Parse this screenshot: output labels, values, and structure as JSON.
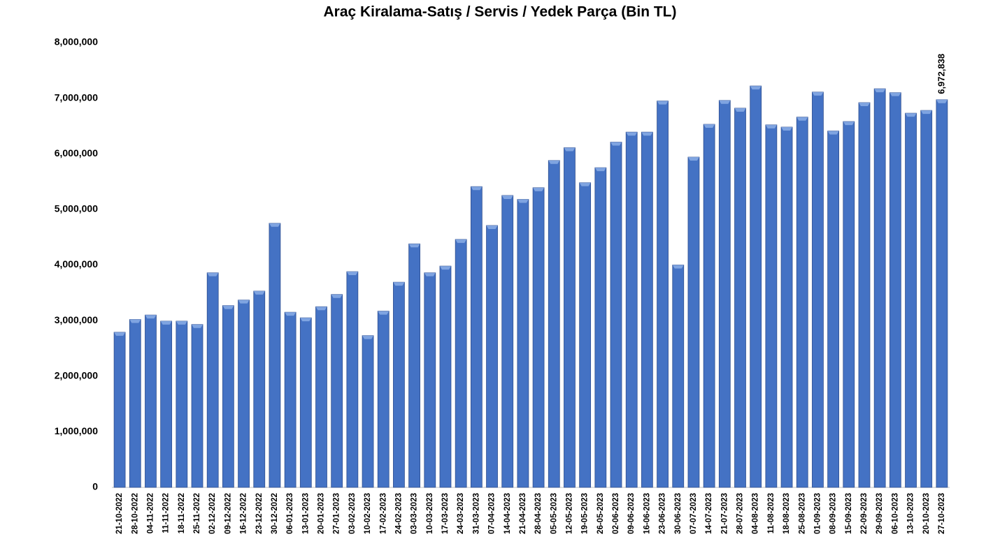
{
  "chart_data": {
    "type": "bar",
    "title": "Araç Kiralama-Satış / Servis / Yedek Parça (Bin TL)",
    "categories": [
      "21-10-2022",
      "28-10-2022",
      "04-11-2022",
      "11-11-2022",
      "18-11-2022",
      "25-11-2022",
      "02-12-2022",
      "09-12-2022",
      "16-12-2022",
      "23-12-2022",
      "30-12-2022",
      "06-01-2023",
      "13-01-2023",
      "20-01-2023",
      "27-01-2023",
      "03-02-2023",
      "10-02-2023",
      "17-02-2023",
      "24-02-2023",
      "03-03-2023",
      "10-03-2023",
      "17-03-2023",
      "24-03-2023",
      "31-03-2023",
      "07-04-2023",
      "14-04-2023",
      "21-04-2023",
      "28-04-2023",
      "05-05-2023",
      "12-05-2023",
      "19-05-2023",
      "26-05-2023",
      "02-06-2023",
      "09-06-2023",
      "16-06-2023",
      "23-06-2023",
      "30-06-2023",
      "07-07-2023",
      "14-07-2023",
      "21-07-2023",
      "28-07-2023",
      "04-08-2023",
      "11-08-2023",
      "18-08-2023",
      "25-08-2023",
      "01-09-2023",
      "08-09-2023",
      "15-09-2023",
      "22-09-2023",
      "29-09-2023",
      "06-10-2023",
      "13-10-2023",
      "20-10-2023",
      "27-10-2023"
    ],
    "values": [
      2790000,
      3020000,
      3100000,
      2990000,
      2990000,
      2930000,
      3860000,
      3270000,
      3370000,
      3530000,
      4750000,
      3150000,
      3050000,
      3250000,
      3470000,
      3880000,
      2730000,
      3170000,
      3690000,
      4380000,
      3860000,
      3980000,
      4460000,
      5410000,
      4710000,
      5250000,
      5180000,
      5390000,
      5880000,
      6110000,
      5480000,
      5750000,
      6210000,
      6390000,
      6390000,
      6950000,
      4000000,
      5940000,
      6530000,
      6960000,
      6820000,
      7220000,
      6520000,
      6480000,
      6660000,
      7110000,
      6410000,
      6580000,
      6920000,
      7170000,
      7100000,
      6730000,
      6780000,
      6972838
    ],
    "value_labels": [
      null,
      null,
      null,
      null,
      null,
      null,
      null,
      null,
      null,
      null,
      null,
      null,
      null,
      null,
      null,
      null,
      null,
      null,
      null,
      null,
      null,
      null,
      null,
      null,
      null,
      null,
      null,
      null,
      null,
      null,
      null,
      null,
      null,
      null,
      null,
      null,
      null,
      null,
      null,
      null,
      null,
      null,
      null,
      null,
      null,
      null,
      null,
      null,
      null,
      null,
      null,
      null,
      null,
      "6,972,838"
    ],
    "color": "#4472c4",
    "ylim": [
      0,
      8000000
    ],
    "yticks": [
      0,
      {
        "value": 1000000,
        "label": "1,000,000"
      },
      {
        "value": 2000000,
        "label": "2,000,000"
      },
      {
        "value": 3000000,
        "label": "3,000,000"
      },
      {
        "value": 4000000,
        "label": "4,000,000"
      },
      {
        "value": 5000000,
        "label": "5,000,000"
      },
      {
        "value": 6000000,
        "label": "6,000,000"
      },
      {
        "value": 7000000,
        "label": "7,000,000"
      },
      {
        "value": 8000000,
        "label": "8,000,000"
      }
    ],
    "grid": false
  }
}
